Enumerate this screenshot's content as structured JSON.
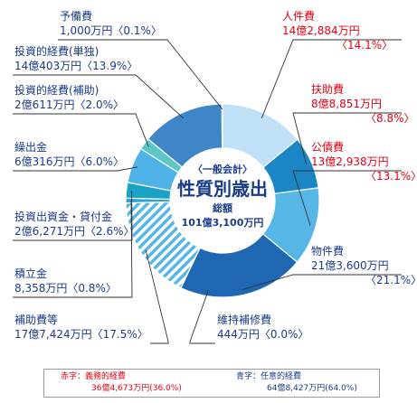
{
  "chart_data": {
    "type": "pie",
    "title": "性質別歳出",
    "subtitle": "〈一般会計〉",
    "total_label": "総額",
    "total_value": "101億3,100万円",
    "slices": [
      {
        "name": "人件費",
        "value_text": "14億2,884万円",
        "percent_text": "〈14.1%〉",
        "percent": 14.1,
        "color": "#bfe0f6",
        "class": "mandatory"
      },
      {
        "name": "扶助費",
        "value_text": "8億8,851万円",
        "percent_text": "〈8.8%〉",
        "percent": 8.8,
        "color": "#1b86c6",
        "class": "mandatory"
      },
      {
        "name": "公債費",
        "value_text": "13億2,938万円",
        "percent_text": "〈13.1%〉",
        "percent": 13.1,
        "color": "#56b6e6",
        "class": "mandatory"
      },
      {
        "name": "物件費",
        "value_text": "21億3,600万円",
        "percent_text": "〈21.1%〉",
        "percent": 21.1,
        "color": "#2067b3",
        "class": "discretionary"
      },
      {
        "name": "維持補修費",
        "value_text": "444万円",
        "percent_text": "〈0.0%〉",
        "percent": 0.05,
        "color": "#7fc4ec",
        "class": "discretionary"
      },
      {
        "name": "補助費等",
        "value_text": "17億7,424万円",
        "percent_text": "〈17.5%〉",
        "percent": 17.5,
        "color": "#56b6e6",
        "pattern": "hatch",
        "class": "discretionary"
      },
      {
        "name": "積立金",
        "value_text": "8,358万円",
        "percent_text": "〈0.8%〉",
        "percent": 0.8,
        "color": "#2b9fd6",
        "class": "discretionary"
      },
      {
        "name": "投資出資金・貸付金",
        "value_text": "2億6,271万円",
        "percent_text": "〈2.6%〉",
        "percent": 2.6,
        "color": "#1aa3c6",
        "class": "discretionary"
      },
      {
        "name": "繰出金",
        "value_text": "6億316万円",
        "percent_text": "〈6.0%〉",
        "percent": 6.0,
        "color": "#4fb3e8",
        "class": "discretionary"
      },
      {
        "name": "投資的経費(補助)",
        "value_text": "2億611万円",
        "percent_text": "〈2.0%〉",
        "percent": 2.0,
        "color": "#5cc5c5",
        "class": "discretionary"
      },
      {
        "name": "投資的経費(単独)",
        "value_text": "14億403万円",
        "percent_text": "〈13.9%〉",
        "percent": 13.9,
        "color": "#3f86c8",
        "class": "discretionary"
      },
      {
        "name": "予備費",
        "value_text": "1,000万円",
        "percent_text": "〈0.1%〉",
        "percent": 0.1,
        "color": "#9fd0ee",
        "class": "discretionary"
      }
    ],
    "legend": {
      "red_label": "赤字：義務的経費",
      "red_value": "36億4,673万円(36.0%)",
      "blue_label": "青字：任意的経費",
      "blue_value": "64億8,427万円(64.0%)"
    },
    "colors": {
      "mandatory_text": "#e60012",
      "discretionary_text": "#1a3b8a"
    }
  }
}
